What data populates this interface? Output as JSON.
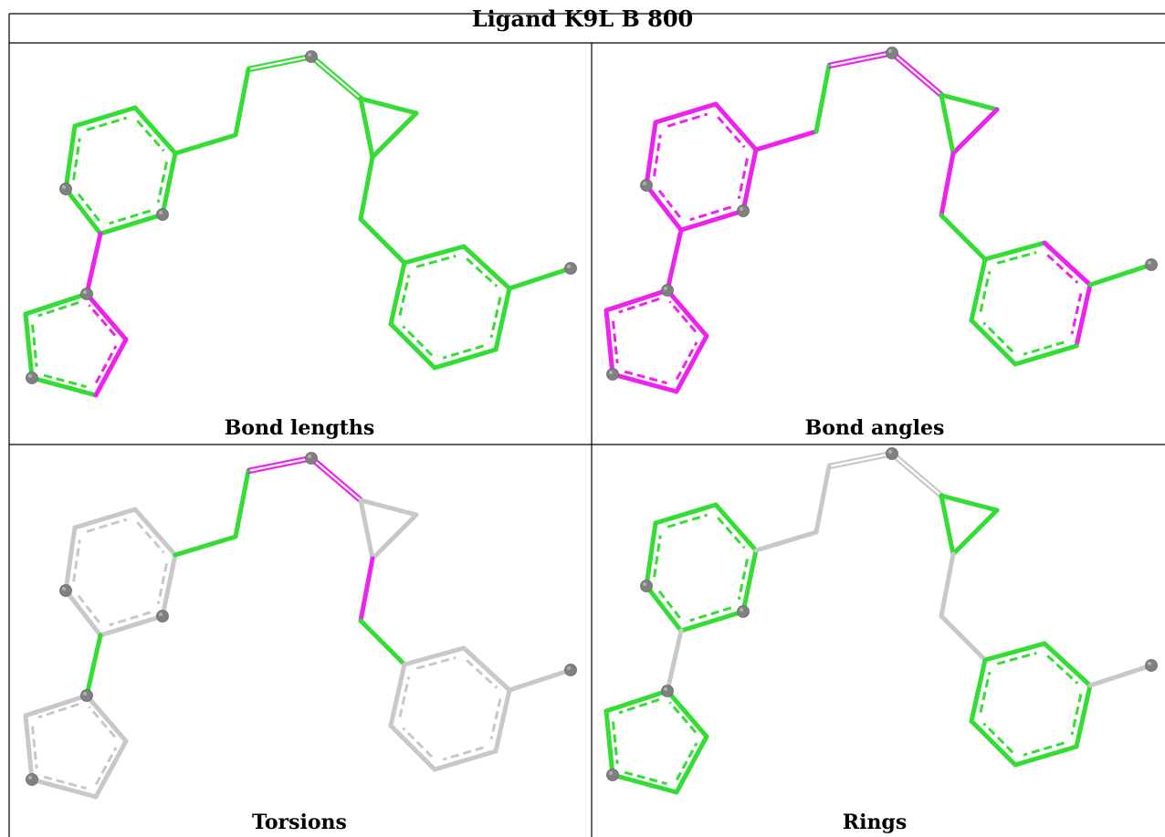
{
  "title": "Ligand K9L B 800",
  "panels": [
    {
      "caption": "Bond lengths"
    },
    {
      "caption": "Bond angles"
    },
    {
      "caption": "Torsions"
    },
    {
      "caption": "Rings"
    }
  ],
  "colors": {
    "good": "#33dd33",
    "outlier": "#ee22ee",
    "neutral": "#c8c8c8",
    "atom": "#808080",
    "border": "#000000"
  }
}
